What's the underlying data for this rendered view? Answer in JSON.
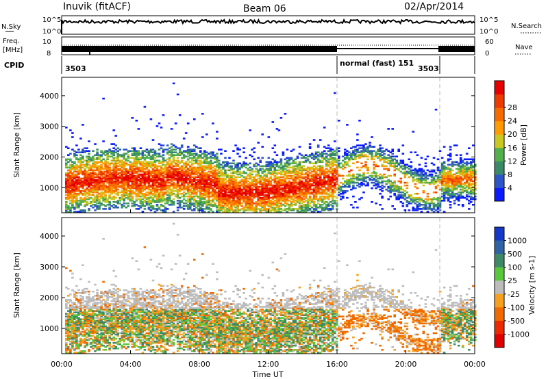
{
  "header": {
    "station": "Inuvik (fitACF)",
    "beam": "Beam 06",
    "date": "02/Apr/2014"
  },
  "aux_panels": {
    "nsky_label": "N.Sky",
    "nsky_ticks": [
      "10^5",
      "10^0"
    ],
    "nsearch_label": "N.Search",
    "freq_label_line1": "Freq.",
    "freq_label_line2": "[MHz]",
    "freq_ticks": [
      "10",
      "8"
    ],
    "nave_ticks": [
      "60",
      "0"
    ],
    "nave_label": "Nave",
    "cpid_label": "CPID",
    "cpid_segments": [
      {
        "label": "3503",
        "start_hour": 0
      },
      {
        "label": "normal (fast) 151",
        "start_hour": 16
      },
      {
        "label": "3503",
        "start_hour": 22
      }
    ]
  },
  "chart_data": [
    {
      "type": "heatmap",
      "title": "",
      "xlabel": "",
      "ylabel": "Slant Range [km]",
      "xlim": [
        0,
        24
      ],
      "ylim": [
        180,
        4600
      ],
      "yticks": [
        1000,
        2000,
        3000,
        4000
      ],
      "colorbar": {
        "label": "Power [dB]",
        "ticks": [
          "4",
          "8",
          "12",
          "16",
          "20",
          "24",
          "28"
        ],
        "colors": [
          "#0a1cff",
          "#2c56c8",
          "#3a8a6a",
          "#52b04c",
          "#c8c820",
          "#ff9a00",
          "#f66a00",
          "#ee3a00",
          "#e80000"
        ]
      }
    },
    {
      "type": "heatmap",
      "title": "",
      "xlabel": "Time UT",
      "ylabel": "Slant Range [km]",
      "xlim": [
        0,
        24
      ],
      "ylim": [
        180,
        4600
      ],
      "xticks": [
        "00:00",
        "04:00",
        "08:00",
        "12:00",
        "16:00",
        "20:00",
        "00:00"
      ],
      "yticks": [
        1000,
        2000,
        3000,
        4000
      ],
      "colorbar": {
        "label": "Velocity [m s-1]",
        "ticks": [
          "1000",
          "500",
          "100",
          "25",
          "-25",
          "-100",
          "-500",
          "-1000"
        ],
        "colors": [
          "#1638c8",
          "#2e64a6",
          "#3e8a66",
          "#58c83a",
          "#bcbcbc",
          "#f6a020",
          "#f06a00",
          "#ee2800",
          "#e00000"
        ]
      }
    }
  ]
}
